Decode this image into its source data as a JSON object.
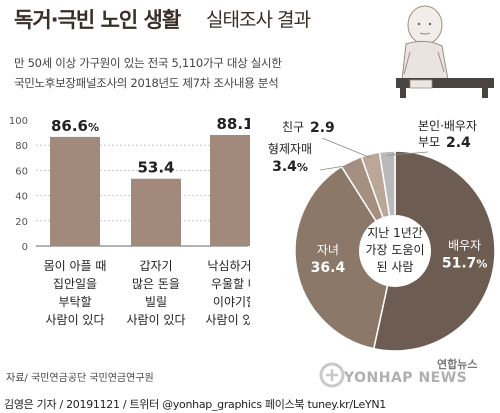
{
  "title": {
    "main": "독거·극빈 노인 생활",
    "sub": "실태조사 결과"
  },
  "subtitle": {
    "line1": "만 50세 이상 가구원이 있는 전국 5,110가구 대상 실시한",
    "line2": "국민노후보장패널조사의 2018년도 제7차 조사내용 분석"
  },
  "colors": {
    "bar": "#a1897b",
    "axis_text": "#555555",
    "grid": "#bfbfbf",
    "pie_self": "#6d5c51",
    "pie_children": "#8c7869",
    "pie_siblings": "#a58f80",
    "pie_friend": "#bba798",
    "pie_spouse": "#b9b9b9"
  },
  "chart_data": [
    {
      "type": "bar",
      "categories": [
        "몸이 아플 때 집안일을 부탁할 사람이 있다",
        "갑자기 많은 돈을 빌릴 사람이 있다",
        "낙심하거나 우울할 때 이야기할 사람이 있다"
      ],
      "category_lines": [
        [
          "몸이 아플 때",
          "집안일을",
          "부탁할",
          "사람이 있다"
        ],
        [
          "갑자기",
          "많은 돈을",
          "빌릴",
          "사람이 있다"
        ],
        [
          "낙심하거나",
          "우울할 때",
          "이야기할",
          "사람이 있다"
        ]
      ],
      "values": [
        86.6,
        53.4,
        88.1
      ],
      "value_labels": [
        "86.6",
        "53.4",
        "88.1"
      ],
      "value_unit": "%",
      "ylim": [
        0,
        100
      ],
      "yticks": [
        0,
        20,
        40,
        60,
        80,
        100
      ],
      "grid": true
    },
    {
      "type": "pie",
      "center_label_lines": [
        "지난 1년간",
        "가장 도움이",
        "된 사람"
      ],
      "slices": [
        {
          "name": "배우자",
          "value": 51.7,
          "label": "51.7",
          "unit": "%"
        },
        {
          "name": "자녀",
          "value": 36.4,
          "label": "36.4",
          "unit": ""
        },
        {
          "name": "형제자매",
          "value": 3.4,
          "label": "3.4",
          "unit": "%"
        },
        {
          "name": "친구",
          "value": 2.9,
          "label": "2.9",
          "unit": ""
        },
        {
          "name": "본인·배우자 부모",
          "value": 2.4,
          "label": "2.4",
          "unit": "",
          "name_lines": [
            "본인·배우자",
            "부모"
          ]
        }
      ]
    }
  ],
  "source": "자료/ 국민연금공단 국민연금연구원",
  "credit": "김영은 기자 / 20191121 / 트위터 @yonhap_graphics  페이스북 tuney.kr/LeYN1",
  "logo": {
    "main": "YONHAP NEWS",
    "sub": "연합뉴스"
  }
}
